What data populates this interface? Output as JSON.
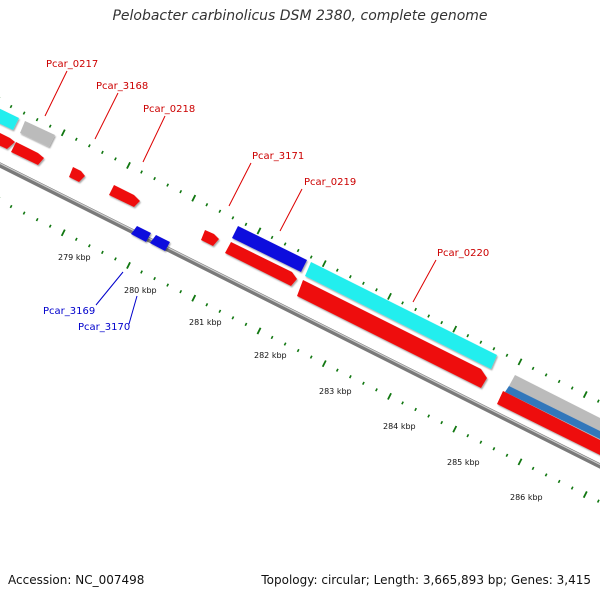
{
  "title": "Pelobacter carbinolicus DSM 2380, complete genome",
  "footer": {
    "accession": "Accession: NC_007498",
    "topology": "Topology: circular; Length: 3,665,893 bp; Genes: 3,415"
  },
  "colors": {
    "forward_gene": "#ee1111",
    "reverse_gene": "#1111dd",
    "cds_cyan": "#22eeee",
    "other_gray": "#bbbbbb",
    "other_steel": "#3377bb",
    "tick_green": "#117711",
    "backbone": "#888888"
  },
  "axis_labels": [
    "279 kbp",
    "280 kbp",
    "281 kbp",
    "282 kbp",
    "283 kbp",
    "284 kbp",
    "285 kbp",
    "286 kbp"
  ],
  "gene_labels": {
    "top": [
      "Pcar_0217",
      "Pcar_3168",
      "Pcar_0218",
      "Pcar_3171",
      "Pcar_0219",
      "Pcar_0220"
    ],
    "bottom": [
      "Pcar_3169",
      "Pcar_3170"
    ]
  }
}
